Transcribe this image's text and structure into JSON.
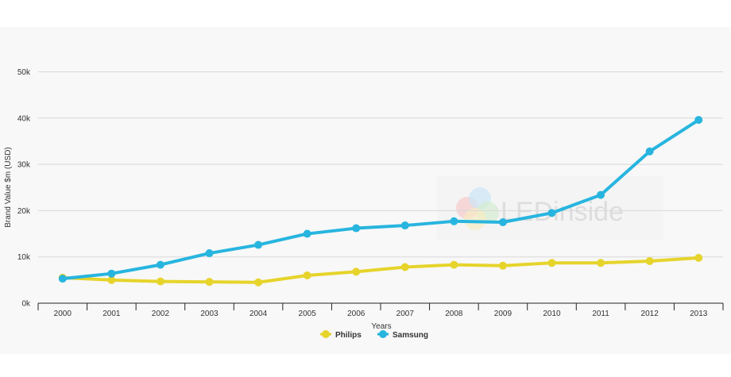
{
  "chart_data": {
    "type": "line",
    "title": "",
    "xlabel": "Years",
    "ylabel": "Brand Value $m (USD)",
    "ylim": [
      0,
      50000
    ],
    "yticks": [
      {
        "value": 0,
        "label": "0k"
      },
      {
        "value": 10000,
        "label": "10k"
      },
      {
        "value": 20000,
        "label": "20k"
      },
      {
        "value": 30000,
        "label": "30k"
      },
      {
        "value": 40000,
        "label": "40k"
      },
      {
        "value": 50000,
        "label": "50k"
      }
    ],
    "categories": [
      "2000",
      "2001",
      "2002",
      "2003",
      "2004",
      "2005",
      "2006",
      "2007",
      "2008",
      "2009",
      "2010",
      "2011",
      "2012",
      "2013"
    ],
    "grid": true,
    "legend_placement": "bottom-center",
    "series": [
      {
        "name": "Philips",
        "color": "#e6d42b",
        "values": [
          5500,
          5000,
          4700,
          4600,
          4500,
          6000,
          6800,
          7800,
          8300,
          8100,
          8700,
          8700,
          9100,
          9800
        ]
      },
      {
        "name": "Samsung",
        "color": "#27b5df",
        "values": [
          5300,
          6400,
          8300,
          10800,
          12600,
          15000,
          16200,
          16800,
          17700,
          17500,
          19500,
          23400,
          32800,
          39600
        ]
      }
    ],
    "watermark": "LEDinside"
  }
}
